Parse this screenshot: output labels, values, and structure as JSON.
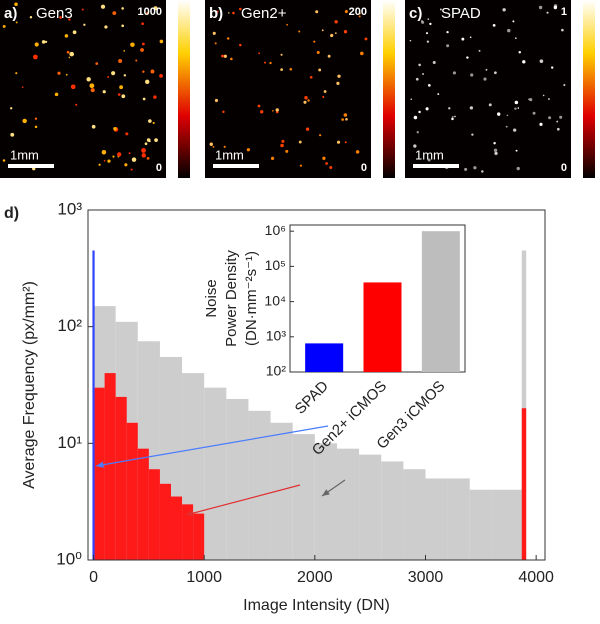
{
  "images": [
    {
      "label": "a)",
      "name": "Gen3",
      "max": 1000,
      "min": 0,
      "scale": "1mm"
    },
    {
      "label": "b)",
      "name": "Gen2+",
      "max": 200,
      "min": 0,
      "scale": "1mm"
    },
    {
      "label": "c)",
      "name": "SPAD",
      "max": 1,
      "min": 0,
      "scale": "1mm"
    }
  ],
  "chart_data": [
    {
      "type": "histogram",
      "panel_label": "d)",
      "xlabel": "Image Intensity (DN)",
      "ylabel": "Average Frequency (px/mm²)",
      "xlim": [
        -50,
        4080
      ],
      "xticks": [
        0,
        1000,
        2000,
        3000,
        4000
      ],
      "ylim": [
        1,
        1000
      ],
      "log_y": true,
      "yticks": [
        {
          "value": 1,
          "label": "10⁰"
        },
        {
          "value": 10,
          "label": "10¹"
        },
        {
          "value": 100,
          "label": "10²"
        },
        {
          "value": 1000,
          "label": "10³"
        }
      ],
      "series": [
        {
          "name": "Gen3 iCMOS",
          "color": "#c4c4c4",
          "bins": [
            0,
            200,
            400,
            600,
            800,
            1000,
            1200,
            1400,
            1600,
            1800,
            2000,
            2200,
            2400,
            2600,
            2800,
            3000,
            3200,
            3400,
            3600,
            3800,
            3870,
            3910
          ],
          "values": [
            150,
            110,
            75,
            55,
            40,
            30,
            24,
            19,
            15,
            12,
            10,
            9,
            8,
            7,
            6,
            5,
            5,
            4,
            4,
            4,
            450
          ]
        },
        {
          "name": "Gen2+ iCMOS",
          "color": "#ff1a1a",
          "bins": [
            0,
            100,
            200,
            300,
            400,
            500,
            600,
            700,
            800,
            900,
            1000,
            3870,
            3910
          ],
          "values": [
            30,
            40,
            25,
            15,
            9,
            6,
            4.5,
            3.5,
            3,
            2.5,
            1,
            20
          ]
        },
        {
          "name": "SPAD",
          "color": "#3344ff",
          "bins": [
            -10,
            10
          ],
          "values": [
            450
          ]
        }
      ]
    },
    {
      "type": "bar",
      "log_y": true,
      "ylabel": [
        "Noise",
        "Power Density",
        "(DN·mm⁻²s⁻¹)"
      ],
      "categories": [
        "SPAD",
        "Gen2+ iCMOS",
        "Gen3 iCMOS"
      ],
      "values": [
        650,
        35000,
        1000000
      ],
      "colors": [
        "#0000ff",
        "#ff0000",
        "#bdbdbd"
      ],
      "ylim": [
        100,
        1500000
      ],
      "yticks": [
        {
          "value": 100,
          "label": "10²"
        },
        {
          "value": 1000,
          "label": "10³"
        },
        {
          "value": 10000,
          "label": "10⁴"
        },
        {
          "value": 100000,
          "label": "10⁵"
        },
        {
          "value": 1000000,
          "label": "10⁶"
        }
      ]
    }
  ]
}
